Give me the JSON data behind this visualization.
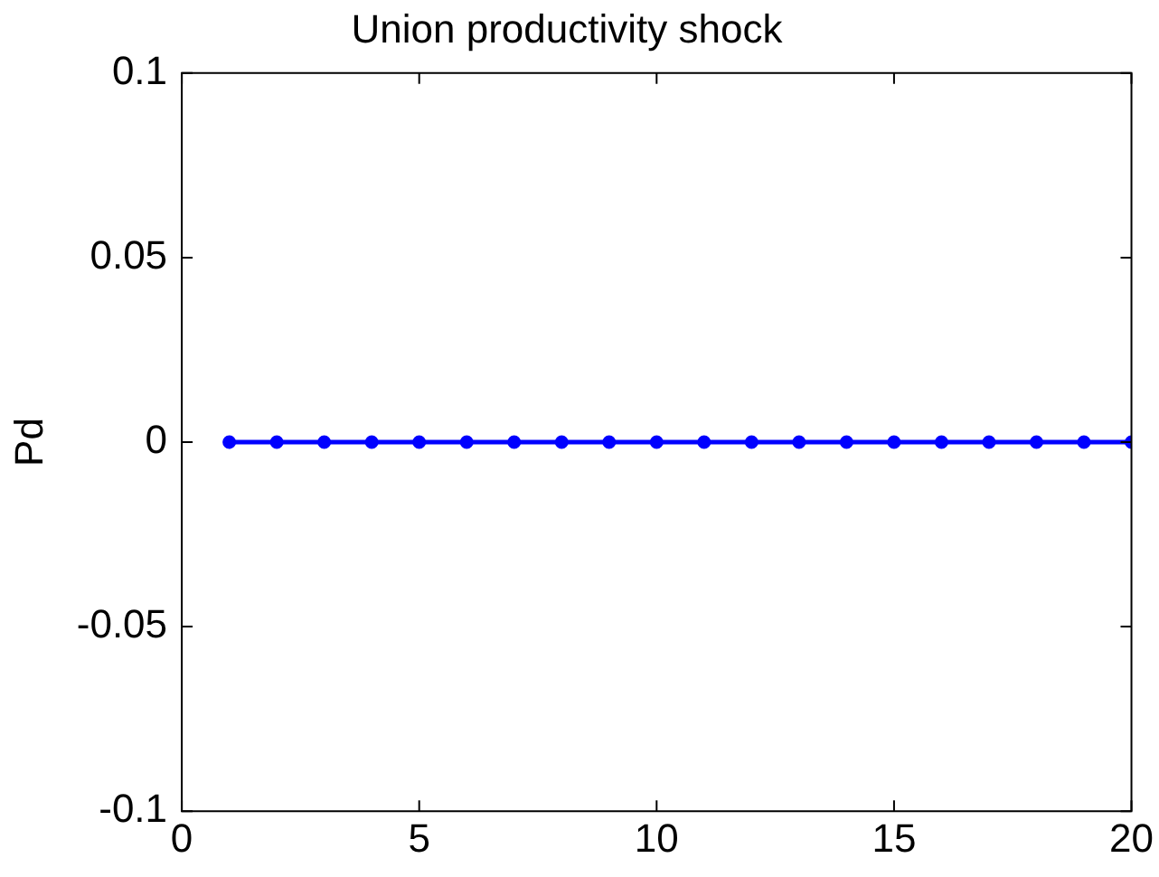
{
  "chart_data": {
    "type": "line",
    "title": "Union productivity shock",
    "ylabel": "Pd",
    "x": [
      1,
      2,
      3,
      4,
      5,
      6,
      7,
      8,
      9,
      10,
      11,
      12,
      13,
      14,
      15,
      16,
      17,
      18,
      19,
      20
    ],
    "series": [
      {
        "color": "#0000ff",
        "values": [
          0,
          0,
          0,
          0,
          0,
          0,
          0,
          0,
          0,
          0,
          0,
          0,
          0,
          0,
          0,
          0,
          0,
          0,
          0,
          0
        ]
      }
    ],
    "xlim": [
      0,
      20
    ],
    "xticks": [
      0,
      5,
      10,
      15,
      20
    ],
    "ylim": [
      -0.1,
      0.1
    ],
    "yticks": [
      -0.1,
      -0.05,
      0,
      0.05,
      0.1
    ],
    "marker": "circle",
    "line_style": "solid",
    "legend": false,
    "grid": false
  }
}
